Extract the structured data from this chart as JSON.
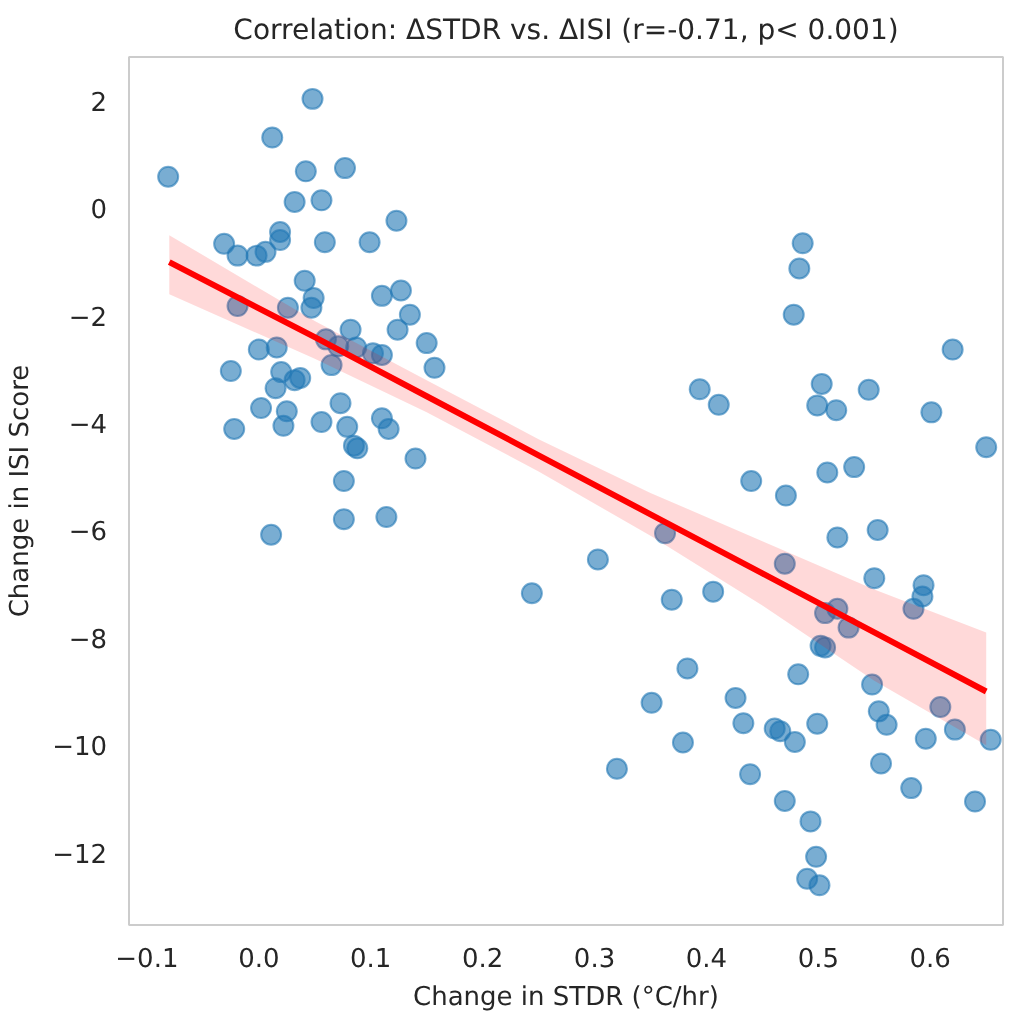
{
  "chart_data": {
    "type": "scatter",
    "title": "Correlation: ΔSTDR vs. ΔISI (r=-0.71, p< 0.001)",
    "xlabel": "Change in STDR (°C/hr)",
    "ylabel": "Change in ISI Score",
    "xlim": [
      -0.116,
      0.665
    ],
    "ylim": [
      -13.35,
      2.82
    ],
    "xticks": [
      {
        "value": -0.1,
        "label": "−0.1"
      },
      {
        "value": 0,
        "label": "0.0"
      },
      0.1,
      0.2,
      0.3,
      0.4,
      0.5,
      0.6
    ],
    "yticks": [
      {
        "value": -12,
        "label": "−12"
      },
      {
        "value": -10,
        "label": "−10"
      },
      {
        "value": -8,
        "label": "−8"
      },
      {
        "value": -6,
        "label": "−6"
      },
      {
        "value": -4,
        "label": "−4"
      },
      {
        "value": -2,
        "label": "−2"
      },
      0,
      2
    ],
    "grid": false,
    "marker": "circle",
    "series": [
      {
        "color": "#1f77b4",
        "x": [
          -0.081,
          0.048,
          0.012,
          0.042,
          0.077,
          0.032,
          0.056,
          0.123,
          0.019,
          0.019,
          -0.031,
          -0.019,
          -0.002,
          0.006,
          0.059,
          0.099,
          0.041,
          -0.019,
          0.026,
          0.049,
          0.047,
          0.11,
          0.127,
          0.135,
          0.124,
          0.15,
          0.157,
          0.082,
          0.06,
          0.071,
          0.087,
          0.102,
          0.11,
          0.0,
          0.016,
          0.065,
          -0.025,
          0.02,
          0.015,
          0.032,
          0.037,
          0.073,
          0.002,
          0.025,
          0.11,
          0.116,
          -0.022,
          0.022,
          0.056,
          0.079,
          0.085,
          0.088,
          0.14,
          0.076,
          0.076,
          0.114,
          0.011,
          0.486,
          0.483,
          0.478,
          0.62,
          0.394,
          0.411,
          0.503,
          0.499,
          0.516,
          0.545,
          0.601,
          0.65,
          0.44,
          0.471,
          0.508,
          0.532,
          0.363,
          0.303,
          0.47,
          0.517,
          0.553,
          0.55,
          0.594,
          0.244,
          0.369,
          0.406,
          0.593,
          0.585,
          0.517,
          0.506,
          0.527,
          0.502,
          0.506,
          0.383,
          0.482,
          0.351,
          0.426,
          0.548,
          0.609,
          0.433,
          0.461,
          0.466,
          0.479,
          0.499,
          0.554,
          0.561,
          0.622,
          0.654,
          0.596,
          0.379,
          0.32,
          0.439,
          0.556,
          0.583,
          0.64,
          0.47,
          0.493,
          0.498,
          0.49,
          0.501
        ],
        "values": [
          0.59,
          2.04,
          1.32,
          0.69,
          0.75,
          0.12,
          0.15,
          -0.23,
          -0.44,
          -0.59,
          -0.66,
          -0.88,
          -0.88,
          -0.81,
          -0.63,
          -0.63,
          -1.35,
          -1.82,
          -1.85,
          -1.67,
          -1.85,
          -1.63,
          -1.53,
          -1.98,
          -2.26,
          -2.51,
          -2.97,
          -2.26,
          -2.44,
          -2.57,
          -2.59,
          -2.7,
          -2.73,
          -2.63,
          -2.59,
          -2.92,
          -3.03,
          -3.05,
          -3.35,
          -3.2,
          -3.16,
          -3.63,
          -3.72,
          -3.78,
          -3.91,
          -4.11,
          -4.11,
          -4.05,
          -3.98,
          -4.07,
          -4.42,
          -4.47,
          -4.66,
          -5.08,
          -5.79,
          -5.75,
          -6.08,
          -0.65,
          -1.12,
          -1.98,
          -2.63,
          -3.37,
          -3.66,
          -3.27,
          -3.67,
          -3.76,
          -3.38,
          -3.8,
          -4.45,
          -5.08,
          -5.35,
          -4.92,
          -4.82,
          -6.05,
          -6.54,
          -6.62,
          -6.13,
          -5.99,
          -6.89,
          -7.02,
          -7.17,
          -7.29,
          -7.14,
          -7.23,
          -7.46,
          -7.46,
          -7.54,
          -7.81,
          -8.15,
          -8.18,
          -8.57,
          -8.68,
          -9.21,
          -9.12,
          -8.87,
          -9.29,
          -9.59,
          -9.69,
          -9.74,
          -9.94,
          -9.6,
          -9.37,
          -9.62,
          -9.71,
          -9.9,
          -9.88,
          -9.95,
          -10.44,
          -10.54,
          -10.34,
          -10.8,
          -11.05,
          -11.04,
          -11.42,
          -12.08,
          -12.49,
          -12.61
        ]
      },
      {
        "type": "line",
        "color": "#ff0000",
        "marker": "none",
        "x": [
          -0.08,
          0.05,
          0.15,
          0.25,
          0.35,
          0.45,
          0.55,
          0.65
        ],
        "values": [
          -1.0,
          -2.4,
          -3.5,
          -4.6,
          -5.7,
          -6.8,
          -7.9,
          -9.0
        ],
        "lower": [
          -1.6,
          -2.8,
          -3.8,
          -4.9,
          -6.1,
          -7.4,
          -8.8,
          -10.0
        ],
        "upper": [
          -0.5,
          -2.1,
          -3.2,
          -4.3,
          -5.3,
          -6.2,
          -7.1,
          -7.9
        ]
      }
    ]
  }
}
